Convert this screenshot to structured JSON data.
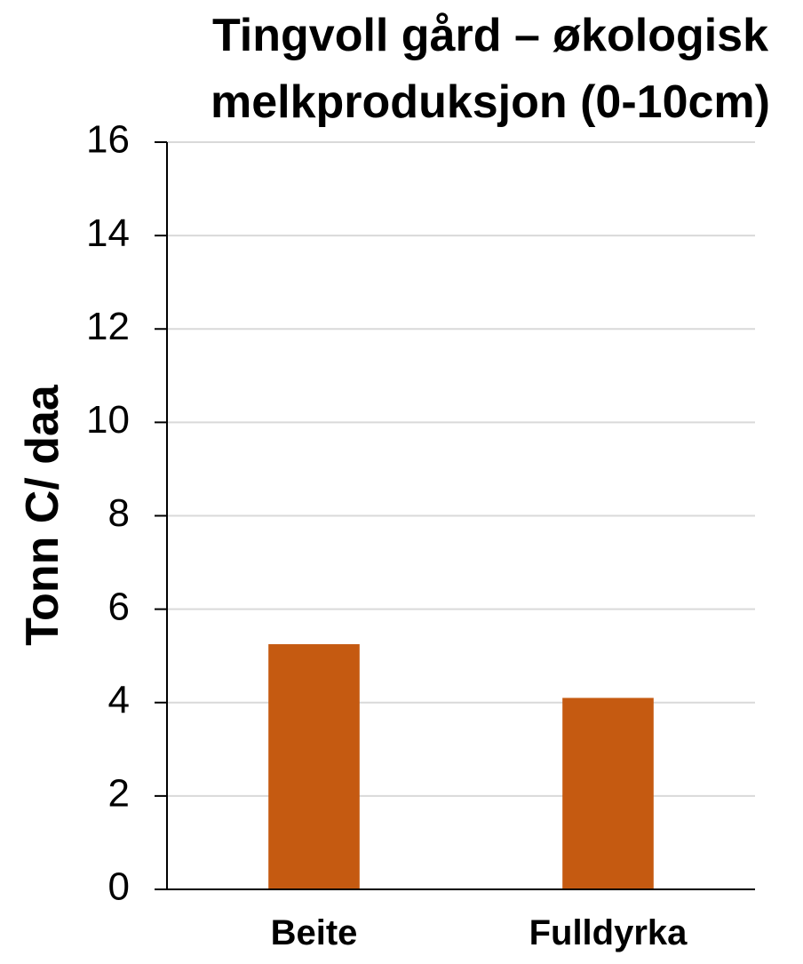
{
  "chart_data": {
    "type": "bar",
    "title_lines": [
      "Tingvoll gård  – økologisk",
      "melkproduksjon (0-10cm)"
    ],
    "ylabel": "Tonn C/ daa",
    "xlabel": "",
    "categories": [
      "Beite",
      "Fulldyrka"
    ],
    "values": [
      5.25,
      4.1
    ],
    "ylim": [
      0,
      16
    ],
    "yticks": [
      0,
      2,
      4,
      6,
      8,
      10,
      12,
      14,
      16
    ],
    "bar_color": "#C55A11",
    "grid": true,
    "legend": "none"
  }
}
